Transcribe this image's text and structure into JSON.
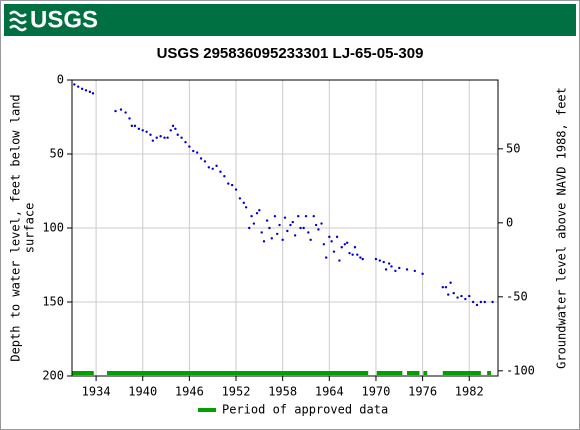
{
  "header": {
    "logo": "USGS"
  },
  "chart_data": {
    "type": "scatter",
    "title": "USGS 295836095233301 LJ-65-05-309",
    "ylabel": [
      "Depth to water level, feet below land",
      "surface"
    ],
    "y2label": "Groundwater level above NAVD 1988, feet",
    "xlim": [
      1930.9,
      1985.7
    ],
    "xticks": [
      1934,
      1940,
      1946,
      1952,
      1958,
      1964,
      1970,
      1976,
      1982
    ],
    "ylim": [
      0,
      200
    ],
    "yticks": [
      0,
      50,
      100,
      150,
      200
    ],
    "y2lim": [
      96.5,
      -103.5
    ],
    "y2ticks": [
      50,
      0,
      -50,
      -100
    ],
    "grid": true,
    "color": "#0000cc",
    "x": [
      1931.2,
      1931.7,
      1932.2,
      1932.7,
      1933.2,
      1933.6,
      1936.5,
      1937.2,
      1937.8,
      1938.3,
      1938.6,
      1939,
      1939.5,
      1940,
      1940.5,
      1941,
      1941.3,
      1941.8,
      1942.3,
      1942.8,
      1943.2,
      1943.6,
      1943.9,
      1944.2,
      1944.5,
      1945,
      1945.5,
      1946,
      1946.5,
      1947,
      1947.5,
      1948,
      1948.5,
      1949,
      1949.5,
      1950,
      1950.5,
      1951,
      1951.5,
      1952,
      1952.5,
      1953,
      1953.3,
      1953.7,
      1954,
      1954.3,
      1954.7,
      1955,
      1955.3,
      1955.6,
      1956,
      1956.3,
      1956.6,
      1957,
      1957.3,
      1957.6,
      1958,
      1958.3,
      1958.6,
      1959,
      1959.3,
      1959.6,
      1960,
      1960.3,
      1960.7,
      1961,
      1961.3,
      1961.6,
      1962,
      1962.3,
      1962.6,
      1963,
      1963.3,
      1963.6,
      1964,
      1964.3,
      1964.6,
      1965,
      1965.3,
      1965.6,
      1966,
      1966.3,
      1966.6,
      1967,
      1967.3,
      1967.6,
      1968,
      1968.3,
      1970,
      1970.5,
      1971,
      1971.3,
      1971.7,
      1972,
      1972.5,
      1973,
      1974,
      1975,
      1976,
      1978.6,
      1979,
      1979.3,
      1979.6,
      1980,
      1980.5,
      1981,
      1981.5,
      1982,
      1982.5,
      1983,
      1983.5,
      1984,
      1985
    ],
    "values": [
      3,
      4.5,
      6,
      7,
      8,
      9,
      21,
      20,
      22,
      26,
      31,
      31,
      33,
      34,
      35,
      37,
      41,
      39,
      38,
      39,
      39,
      34,
      31,
      33,
      37,
      39,
      42,
      45,
      48,
      49,
      53,
      55,
      59,
      60,
      58,
      62,
      65,
      70,
      71,
      74,
      80,
      83,
      86,
      100,
      92,
      97,
      90,
      88,
      103,
      109,
      95,
      100,
      107,
      92,
      104,
      98,
      108,
      93,
      102,
      98,
      96,
      105,
      92,
      100,
      100,
      92,
      103,
      108,
      92,
      98,
      101,
      97,
      111,
      120,
      106,
      109,
      116,
      106,
      122,
      113,
      111,
      110,
      117,
      118,
      113,
      118,
      120,
      121,
      121,
      122,
      123,
      128,
      124,
      126,
      129,
      127,
      128,
      129,
      131,
      140,
      140,
      145,
      137,
      144,
      147,
      146,
      148,
      146,
      150,
      152,
      150,
      150,
      150
    ],
    "approved_periods": [
      [
        1930.9,
        1933.7
      ],
      [
        1935.4,
        1969
      ],
      [
        1970.1,
        1973.4
      ],
      [
        1974,
        1975.6
      ],
      [
        1976.1,
        1976.6
      ],
      [
        1978.6,
        1983.5
      ],
      [
        1984.3,
        1984.8
      ]
    ],
    "approved_color": "#00a000",
    "legend": "Period of approved data"
  }
}
